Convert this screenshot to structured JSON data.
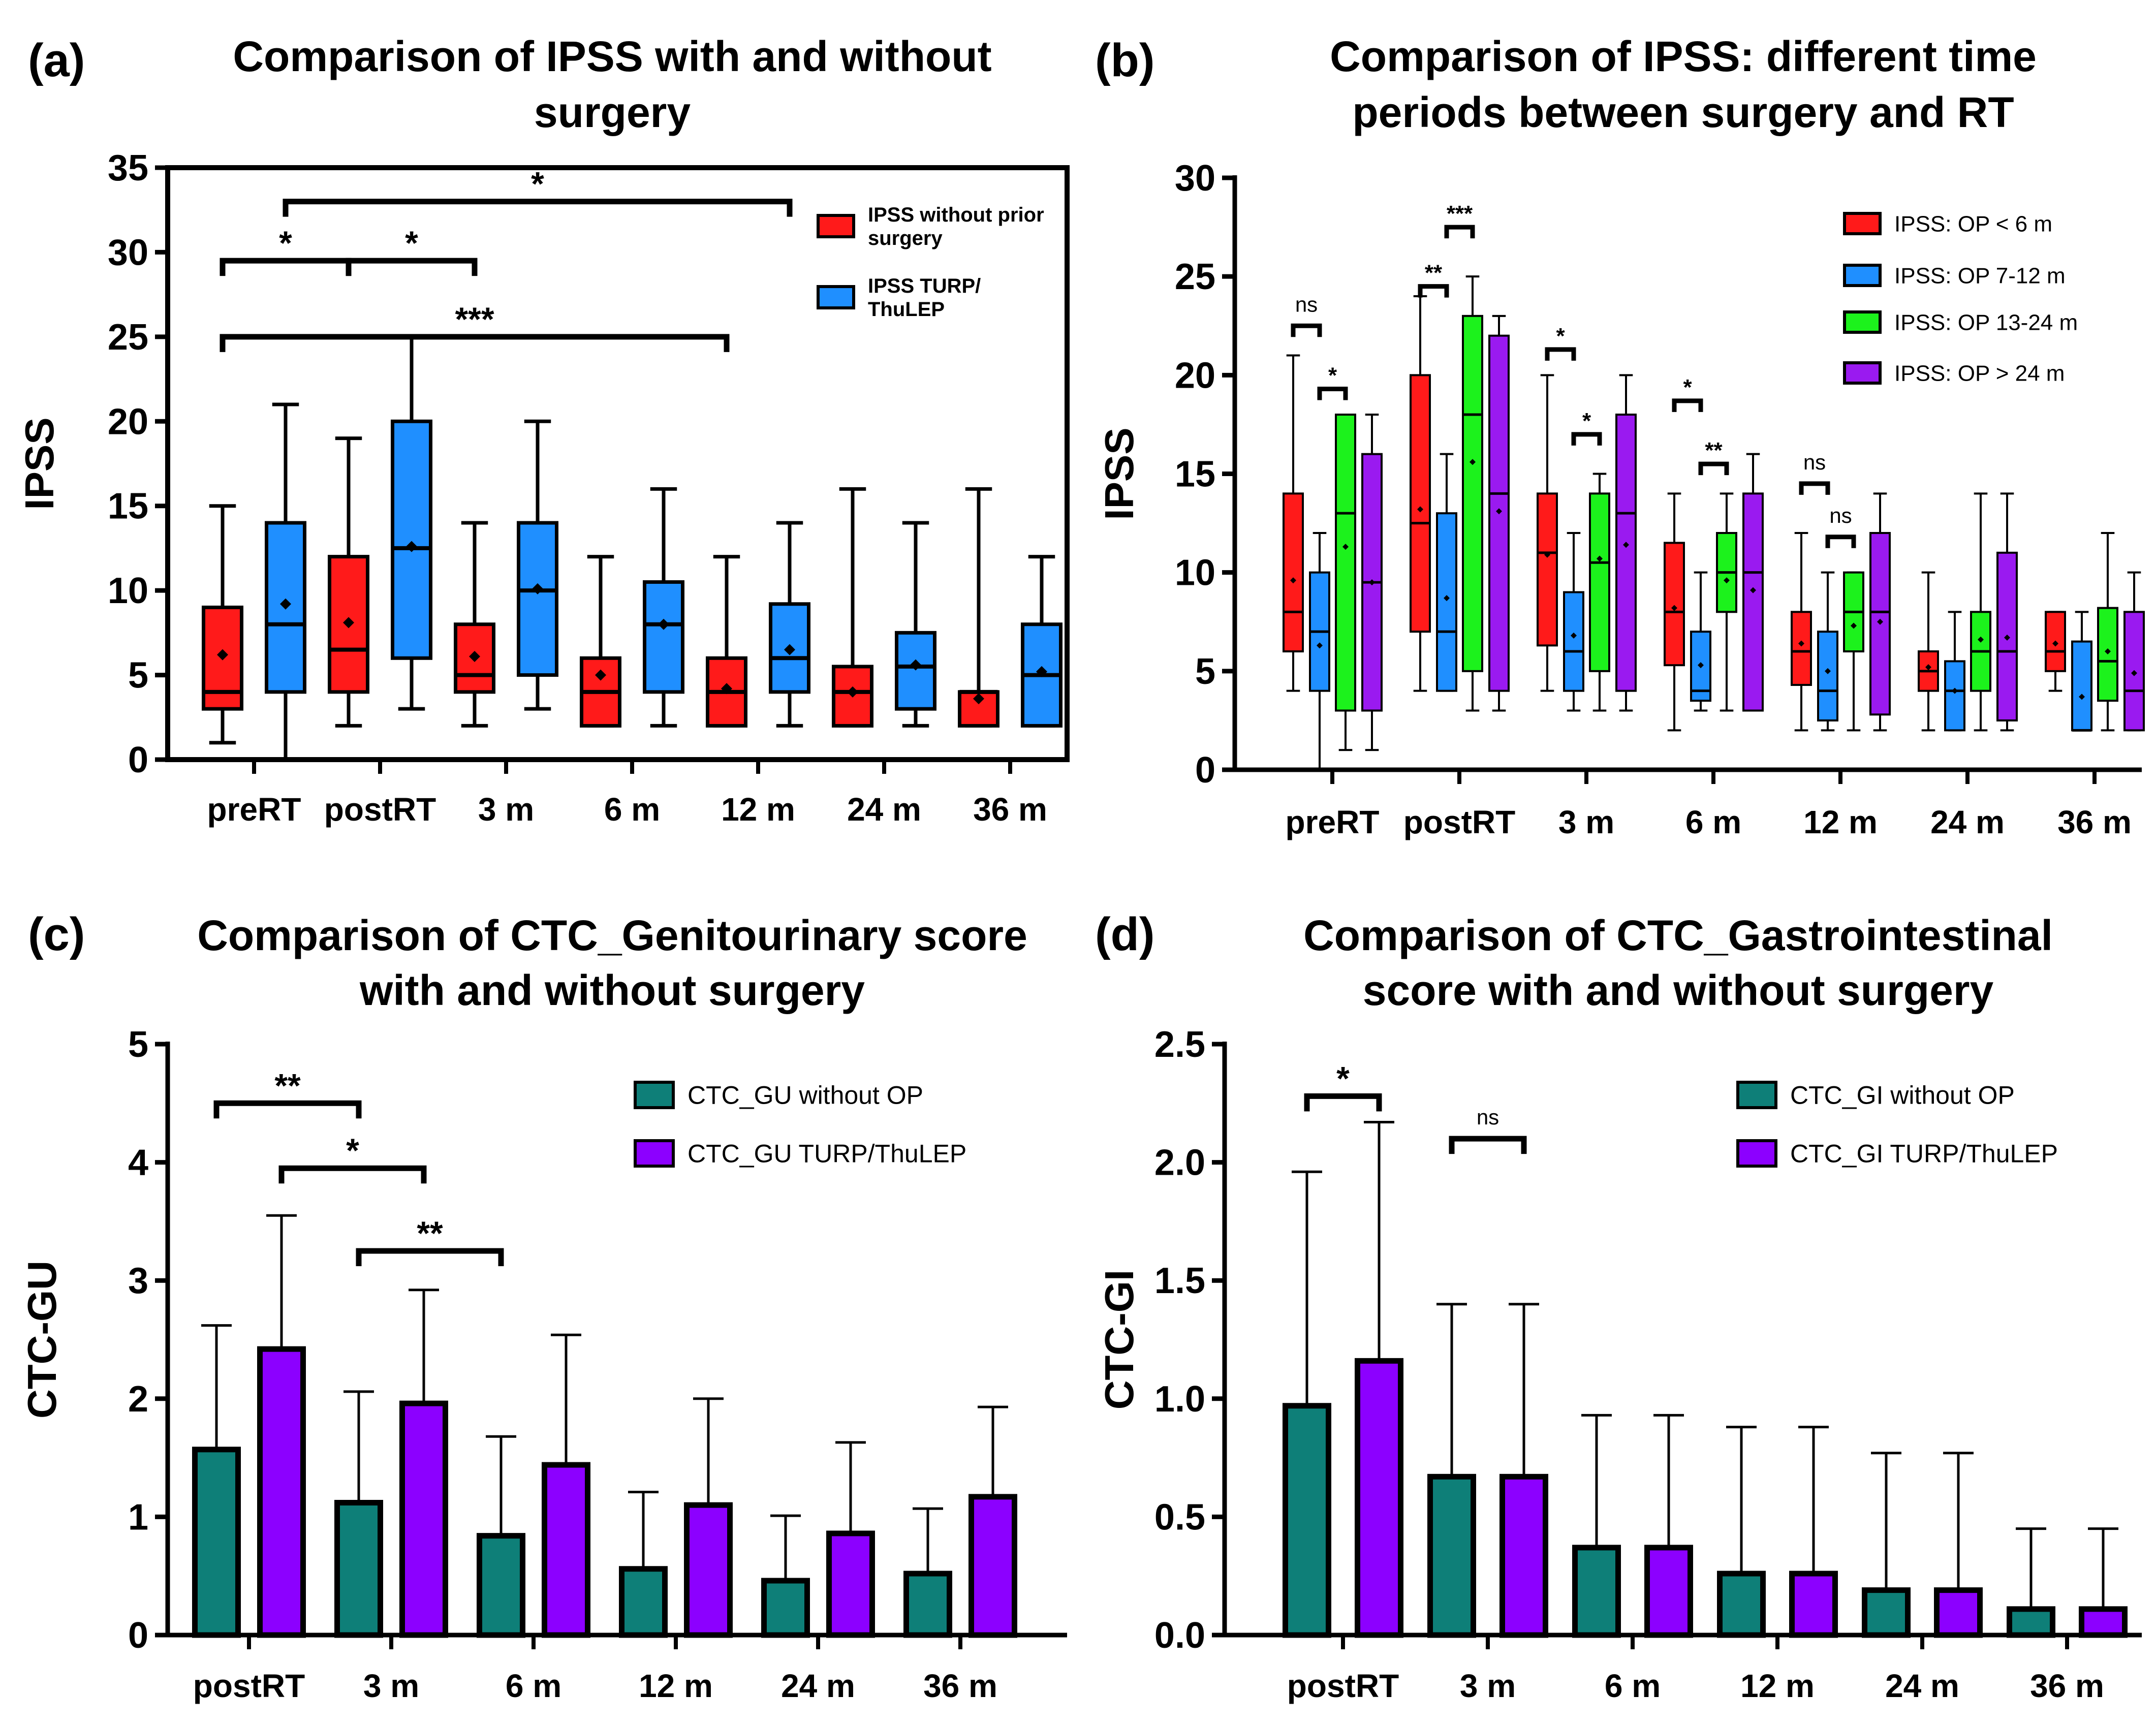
{
  "colors": {
    "red": "#ff1a1a",
    "blue": "#1f8fff",
    "green": "#1cf21c",
    "purple": "#9a1af0",
    "teal": "#0e7f78",
    "violet": "#8c00ff"
  },
  "chart_data": [
    {
      "id": "a",
      "panel_label": "(a)",
      "type": "box",
      "title": [
        "Comparison of IPSS with and without",
        "surgery"
      ],
      "ylabel": "IPSS",
      "ylim": [
        0,
        35
      ],
      "yticks": [
        "0",
        "5",
        "10",
        "15",
        "20",
        "25",
        "30",
        "35"
      ],
      "categories": [
        "preRT",
        "postRT",
        "3 m",
        "6 m",
        "12 m",
        "24 m",
        "36 m"
      ],
      "legend": [
        {
          "label": [
            "IPSS without prior",
            "surgery"
          ],
          "color": "#ff1a1a"
        },
        {
          "label": [
            "IPSS TURP/",
            "ThuLEP"
          ],
          "color": "#1f8fff"
        }
      ],
      "series": [
        {
          "name": "IPSS without prior surgery",
          "color": "#ff1a1a",
          "boxes": [
            {
              "min": 1,
              "q1": 3,
              "median": 4,
              "q3": 9,
              "max": 15,
              "mean": 6.2
            },
            {
              "min": 2,
              "q1": 4,
              "median": 6.5,
              "q3": 12,
              "max": 19,
              "mean": 8.1
            },
            {
              "min": 2,
              "q1": 4,
              "median": 5,
              "q3": 8,
              "max": 14,
              "mean": 6.1
            },
            {
              "min": 2,
              "q1": 2,
              "median": 4,
              "q3": 6,
              "max": 12,
              "mean": 5.0
            },
            {
              "min": 2,
              "q1": 2,
              "median": 4,
              "q3": 6,
              "max": 12,
              "mean": 4.2
            },
            {
              "min": 2,
              "q1": 2,
              "median": 4,
              "q3": 5.5,
              "max": 16,
              "mean": 4.0
            },
            {
              "min": 2,
              "q1": 2,
              "median": 4,
              "q3": 4,
              "max": 16,
              "mean": 3.6
            }
          ]
        },
        {
          "name": "IPSS TURP/ThuLEP",
          "color": "#1f8fff",
          "boxes": [
            {
              "min": 0,
              "q1": 4,
              "median": 8,
              "q3": 14,
              "max": 21,
              "mean": 9.2
            },
            {
              "min": 3,
              "q1": 6,
              "median": 12.5,
              "q3": 20,
              "max": 25,
              "mean": 12.6
            },
            {
              "min": 3,
              "q1": 5,
              "median": 10,
              "q3": 14,
              "max": 20,
              "mean": 10.1
            },
            {
              "min": 2,
              "q1": 4,
              "median": 8,
              "q3": 10.5,
              "max": 16,
              "mean": 8.0
            },
            {
              "min": 2,
              "q1": 4,
              "median": 6,
              "q3": 9.2,
              "max": 14,
              "mean": 6.5
            },
            {
              "min": 2,
              "q1": 3,
              "median": 5.5,
              "q3": 7.5,
              "max": 14,
              "mean": 5.6
            },
            {
              "min": 2,
              "q1": 2,
              "median": 5,
              "q3": 8,
              "max": 12,
              "mean": 5.2
            }
          ]
        }
      ],
      "brackets": [
        {
          "from": [
            0,
            0
          ],
          "to": [
            4,
            0
          ],
          "y": 25,
          "label": "***"
        },
        {
          "from": [
            0,
            0
          ],
          "to": [
            1,
            0
          ],
          "y": 29.5,
          "label": "*"
        },
        {
          "from": [
            1,
            0
          ],
          "to": [
            2,
            0
          ],
          "y": 29.5,
          "label": "*"
        },
        {
          "from": [
            0,
            1
          ],
          "to": [
            4,
            1
          ],
          "y": 33,
          "label": "*"
        }
      ]
    },
    {
      "id": "b",
      "panel_label": "(b)",
      "type": "box",
      "title": [
        "Comparison of IPSS: different time",
        "periods between surgery and RT"
      ],
      "ylabel": "IPSS",
      "ylim": [
        0,
        30
      ],
      "yticks": [
        "0",
        "5",
        "10",
        "15",
        "20",
        "25",
        "30"
      ],
      "categories": [
        "preRT",
        "postRT",
        "3 m",
        "6 m",
        "12 m",
        "24 m",
        "36 m"
      ],
      "legend": [
        {
          "label": [
            "IPSS: OP < 6 m"
          ],
          "color": "#ff1a1a"
        },
        {
          "label": [
            "IPSS: OP 7-12 m"
          ],
          "color": "#1f8fff"
        },
        {
          "label": [
            "IPSS: OP 13-24 m"
          ],
          "color": "#1cf21c"
        },
        {
          "label": [
            "IPSS: OP > 24 m"
          ],
          "color": "#9a1af0"
        }
      ],
      "series": [
        {
          "name": "IPSS: OP < 6 m",
          "color": "#ff1a1a",
          "boxes": [
            {
              "min": 4,
              "q1": 6,
              "median": 8,
              "q3": 14,
              "max": 21,
              "mean": 9.6
            },
            {
              "min": 4,
              "q1": 7,
              "median": 12.5,
              "q3": 20,
              "max": 24,
              "mean": 13.2
            },
            {
              "min": 4,
              "q1": 6.3,
              "median": 11,
              "q3": 14,
              "max": 20,
              "mean": 10.9
            },
            {
              "min": 2,
              "q1": 5.3,
              "median": 8,
              "q3": 11.5,
              "max": 14,
              "mean": 8.2
            },
            {
              "min": 2,
              "q1": 4.3,
              "median": 6,
              "q3": 8,
              "max": 12,
              "mean": 6.4
            },
            {
              "min": 2,
              "q1": 4,
              "median": 5,
              "q3": 6,
              "max": 10,
              "mean": 5.2
            },
            {
              "min": 4,
              "q1": 5,
              "median": 6,
              "q3": 8,
              "max": 8,
              "mean": 6.4
            }
          ]
        },
        {
          "name": "IPSS: OP 7-12 m",
          "color": "#1f8fff",
          "boxes": [
            {
              "min": 0,
              "q1": 4,
              "median": 7,
              "q3": 10,
              "max": 12,
              "mean": 6.3
            },
            {
              "min": 4,
              "q1": 4,
              "median": 7,
              "q3": 13,
              "max": 16,
              "mean": 8.7
            },
            {
              "min": 3,
              "q1": 4,
              "median": 6,
              "q3": 9,
              "max": 12,
              "mean": 6.8
            },
            {
              "min": 3,
              "q1": 3.5,
              "median": 4,
              "q3": 7,
              "max": 10,
              "mean": 5.3
            },
            {
              "min": 2,
              "q1": 2.5,
              "median": 4,
              "q3": 7,
              "max": 10,
              "mean": 5.0
            },
            {
              "min": 2,
              "q1": 2,
              "median": 4,
              "q3": 5.5,
              "max": 8,
              "mean": 4.0
            },
            {
              "min": 2,
              "q1": 2,
              "median": 2,
              "q3": 6.5,
              "max": 8,
              "mean": 3.7
            }
          ]
        },
        {
          "name": "IPSS: OP 13-24 m",
          "color": "#1cf21c",
          "boxes": [
            {
              "min": 1,
              "q1": 3,
              "median": 13,
              "q3": 18,
              "max": 18,
              "mean": 11.3
            },
            {
              "min": 3,
              "q1": 5,
              "median": 18,
              "q3": 23,
              "max": 25,
              "mean": 15.6
            },
            {
              "min": 3,
              "q1": 5,
              "median": 10.5,
              "q3": 14,
              "max": 15,
              "mean": 10.7
            },
            {
              "min": 3,
              "q1": 8,
              "median": 10,
              "q3": 12,
              "max": 14,
              "mean": 9.6
            },
            {
              "min": 2,
              "q1": 6,
              "median": 8,
              "q3": 10,
              "max": 10,
              "mean": 7.3
            },
            {
              "min": 2,
              "q1": 4,
              "median": 6,
              "q3": 8,
              "max": 14,
              "mean": 6.6
            },
            {
              "min": 2,
              "q1": 3.5,
              "median": 5.5,
              "q3": 8.2,
              "max": 12,
              "mean": 6.0
            }
          ]
        },
        {
          "name": "IPSS: OP > 24 m",
          "color": "#9a1af0",
          "boxes": [
            {
              "min": 1,
              "q1": 3,
              "median": 9.5,
              "q3": 16,
              "max": 18,
              "mean": 9.5
            },
            {
              "min": 3,
              "q1": 4,
              "median": 14,
              "q3": 22,
              "max": 23,
              "mean": 13.1
            },
            {
              "min": 3,
              "q1": 4,
              "median": 13,
              "q3": 18,
              "max": 20,
              "mean": 11.4
            },
            {
              "min": 3,
              "q1": 3,
              "median": 10,
              "q3": 14,
              "max": 16,
              "mean": 9.1
            },
            {
              "min": 2,
              "q1": 2.8,
              "median": 8,
              "q3": 12,
              "max": 14,
              "mean": 7.5
            },
            {
              "min": 2,
              "q1": 2.5,
              "median": 6,
              "q3": 11,
              "max": 14,
              "mean": 6.7
            },
            {
              "min": 2,
              "q1": 2,
              "median": 4,
              "q3": 8,
              "max": 10,
              "mean": 4.9
            }
          ]
        }
      ],
      "brackets": [
        {
          "from": [
            0,
            0
          ],
          "to": [
            0,
            1
          ],
          "y": 22.5,
          "label": "ns"
        },
        {
          "from": [
            0,
            1
          ],
          "to": [
            0,
            2
          ],
          "y": 19.3,
          "label": "*"
        },
        {
          "from": [
            1,
            0
          ],
          "to": [
            1,
            1
          ],
          "y": 24.5,
          "label": "**"
        },
        {
          "from": [
            1,
            1
          ],
          "to": [
            1,
            2
          ],
          "y": 27.5,
          "label": "***"
        },
        {
          "from": [
            2,
            0
          ],
          "to": [
            2,
            1
          ],
          "y": 21.3,
          "label": "*"
        },
        {
          "from": [
            2,
            1
          ],
          "to": [
            2,
            2
          ],
          "y": 17.0,
          "label": "*"
        },
        {
          "from": [
            3,
            0
          ],
          "to": [
            3,
            1
          ],
          "y": 18.7,
          "label": "*"
        },
        {
          "from": [
            3,
            1
          ],
          "to": [
            3,
            2
          ],
          "y": 15.5,
          "label": "**"
        },
        {
          "from": [
            4,
            0
          ],
          "to": [
            4,
            1
          ],
          "y": 14.5,
          "label": "ns"
        },
        {
          "from": [
            4,
            1
          ],
          "to": [
            4,
            2
          ],
          "y": 11.8,
          "label": "ns"
        }
      ]
    },
    {
      "id": "c",
      "panel_label": "(c)",
      "type": "bar",
      "title": [
        "Comparison of CTC_Genitourinary score",
        "with and without surgery"
      ],
      "ylabel": "CTC-GU",
      "ylim": [
        0,
        5
      ],
      "yticks": [
        "0",
        "1",
        "2",
        "3",
        "4",
        "5"
      ],
      "categories": [
        "postRT",
        "3 m",
        "6 m",
        "12 m",
        "24 m",
        "36 m"
      ],
      "legend": [
        {
          "label": [
            "CTC_GU  without OP"
          ],
          "color": "#0e7f78"
        },
        {
          "label": [
            "CTC_GU TURP/ThuLEP"
          ],
          "color": "#8c00ff"
        }
      ],
      "series": [
        {
          "name": "CTC_GU without OP",
          "color": "#0e7f78",
          "values": [
            1.57,
            1.12,
            0.84,
            0.56,
            0.46,
            0.52
          ],
          "errors": [
            1.05,
            0.94,
            0.84,
            0.65,
            0.55,
            0.55
          ]
        },
        {
          "name": "CTC_GU TURP/ThuLEP",
          "color": "#8c00ff",
          "values": [
            2.42,
            1.96,
            1.44,
            1.1,
            0.86,
            1.17
          ],
          "errors": [
            1.13,
            0.96,
            1.1,
            0.9,
            0.77,
            0.76
          ]
        }
      ],
      "brackets": [
        {
          "from": [
            0,
            0
          ],
          "to": [
            1,
            0
          ],
          "y": 4.5,
          "label": "**"
        },
        {
          "from": [
            0,
            1
          ],
          "to": [
            1,
            1
          ],
          "y": 3.95,
          "label": "*"
        },
        {
          "from": [
            1,
            0
          ],
          "to": [
            2,
            0
          ],
          "y": 3.25,
          "label": "**"
        }
      ]
    },
    {
      "id": "d",
      "panel_label": "(d)",
      "type": "bar",
      "title": [
        "Comparison of CTC_Gastrointestinal",
        "score with and without surgery"
      ],
      "ylabel": "CTC-GI",
      "ylim": [
        0,
        2.5
      ],
      "yticks": [
        "0.0",
        "0.5",
        "1.0",
        "1.5",
        "2.0",
        "2.5"
      ],
      "categories": [
        "postRT",
        "3 m",
        "6 m",
        "12 m",
        "24 m",
        "36 m"
      ],
      "legend": [
        {
          "label": [
            "CTC_GI without OP"
          ],
          "color": "#0e7f78"
        },
        {
          "label": [
            "CTC_GI TURP/ThuLEP"
          ],
          "color": "#8c00ff"
        }
      ],
      "series": [
        {
          "name": "CTC_GI without OP",
          "color": "#0e7f78",
          "values": [
            0.97,
            0.67,
            0.37,
            0.26,
            0.19,
            0.11
          ],
          "errors": [
            0.99,
            0.73,
            0.56,
            0.62,
            0.58,
            0.34
          ]
        },
        {
          "name": "CTC_GI TURP/ThuLEP",
          "color": "#8c00ff",
          "values": [
            1.16,
            0.67,
            0.37,
            0.26,
            0.19,
            0.11
          ],
          "errors": [
            1.01,
            0.73,
            0.56,
            0.62,
            0.58,
            0.34
          ]
        }
      ],
      "brackets": [
        {
          "from": [
            0,
            0
          ],
          "to": [
            0,
            1
          ],
          "y": 2.28,
          "label": "*"
        },
        {
          "from": [
            1,
            0
          ],
          "to": [
            1,
            1
          ],
          "y": 2.1,
          "label": "ns"
        }
      ]
    }
  ]
}
